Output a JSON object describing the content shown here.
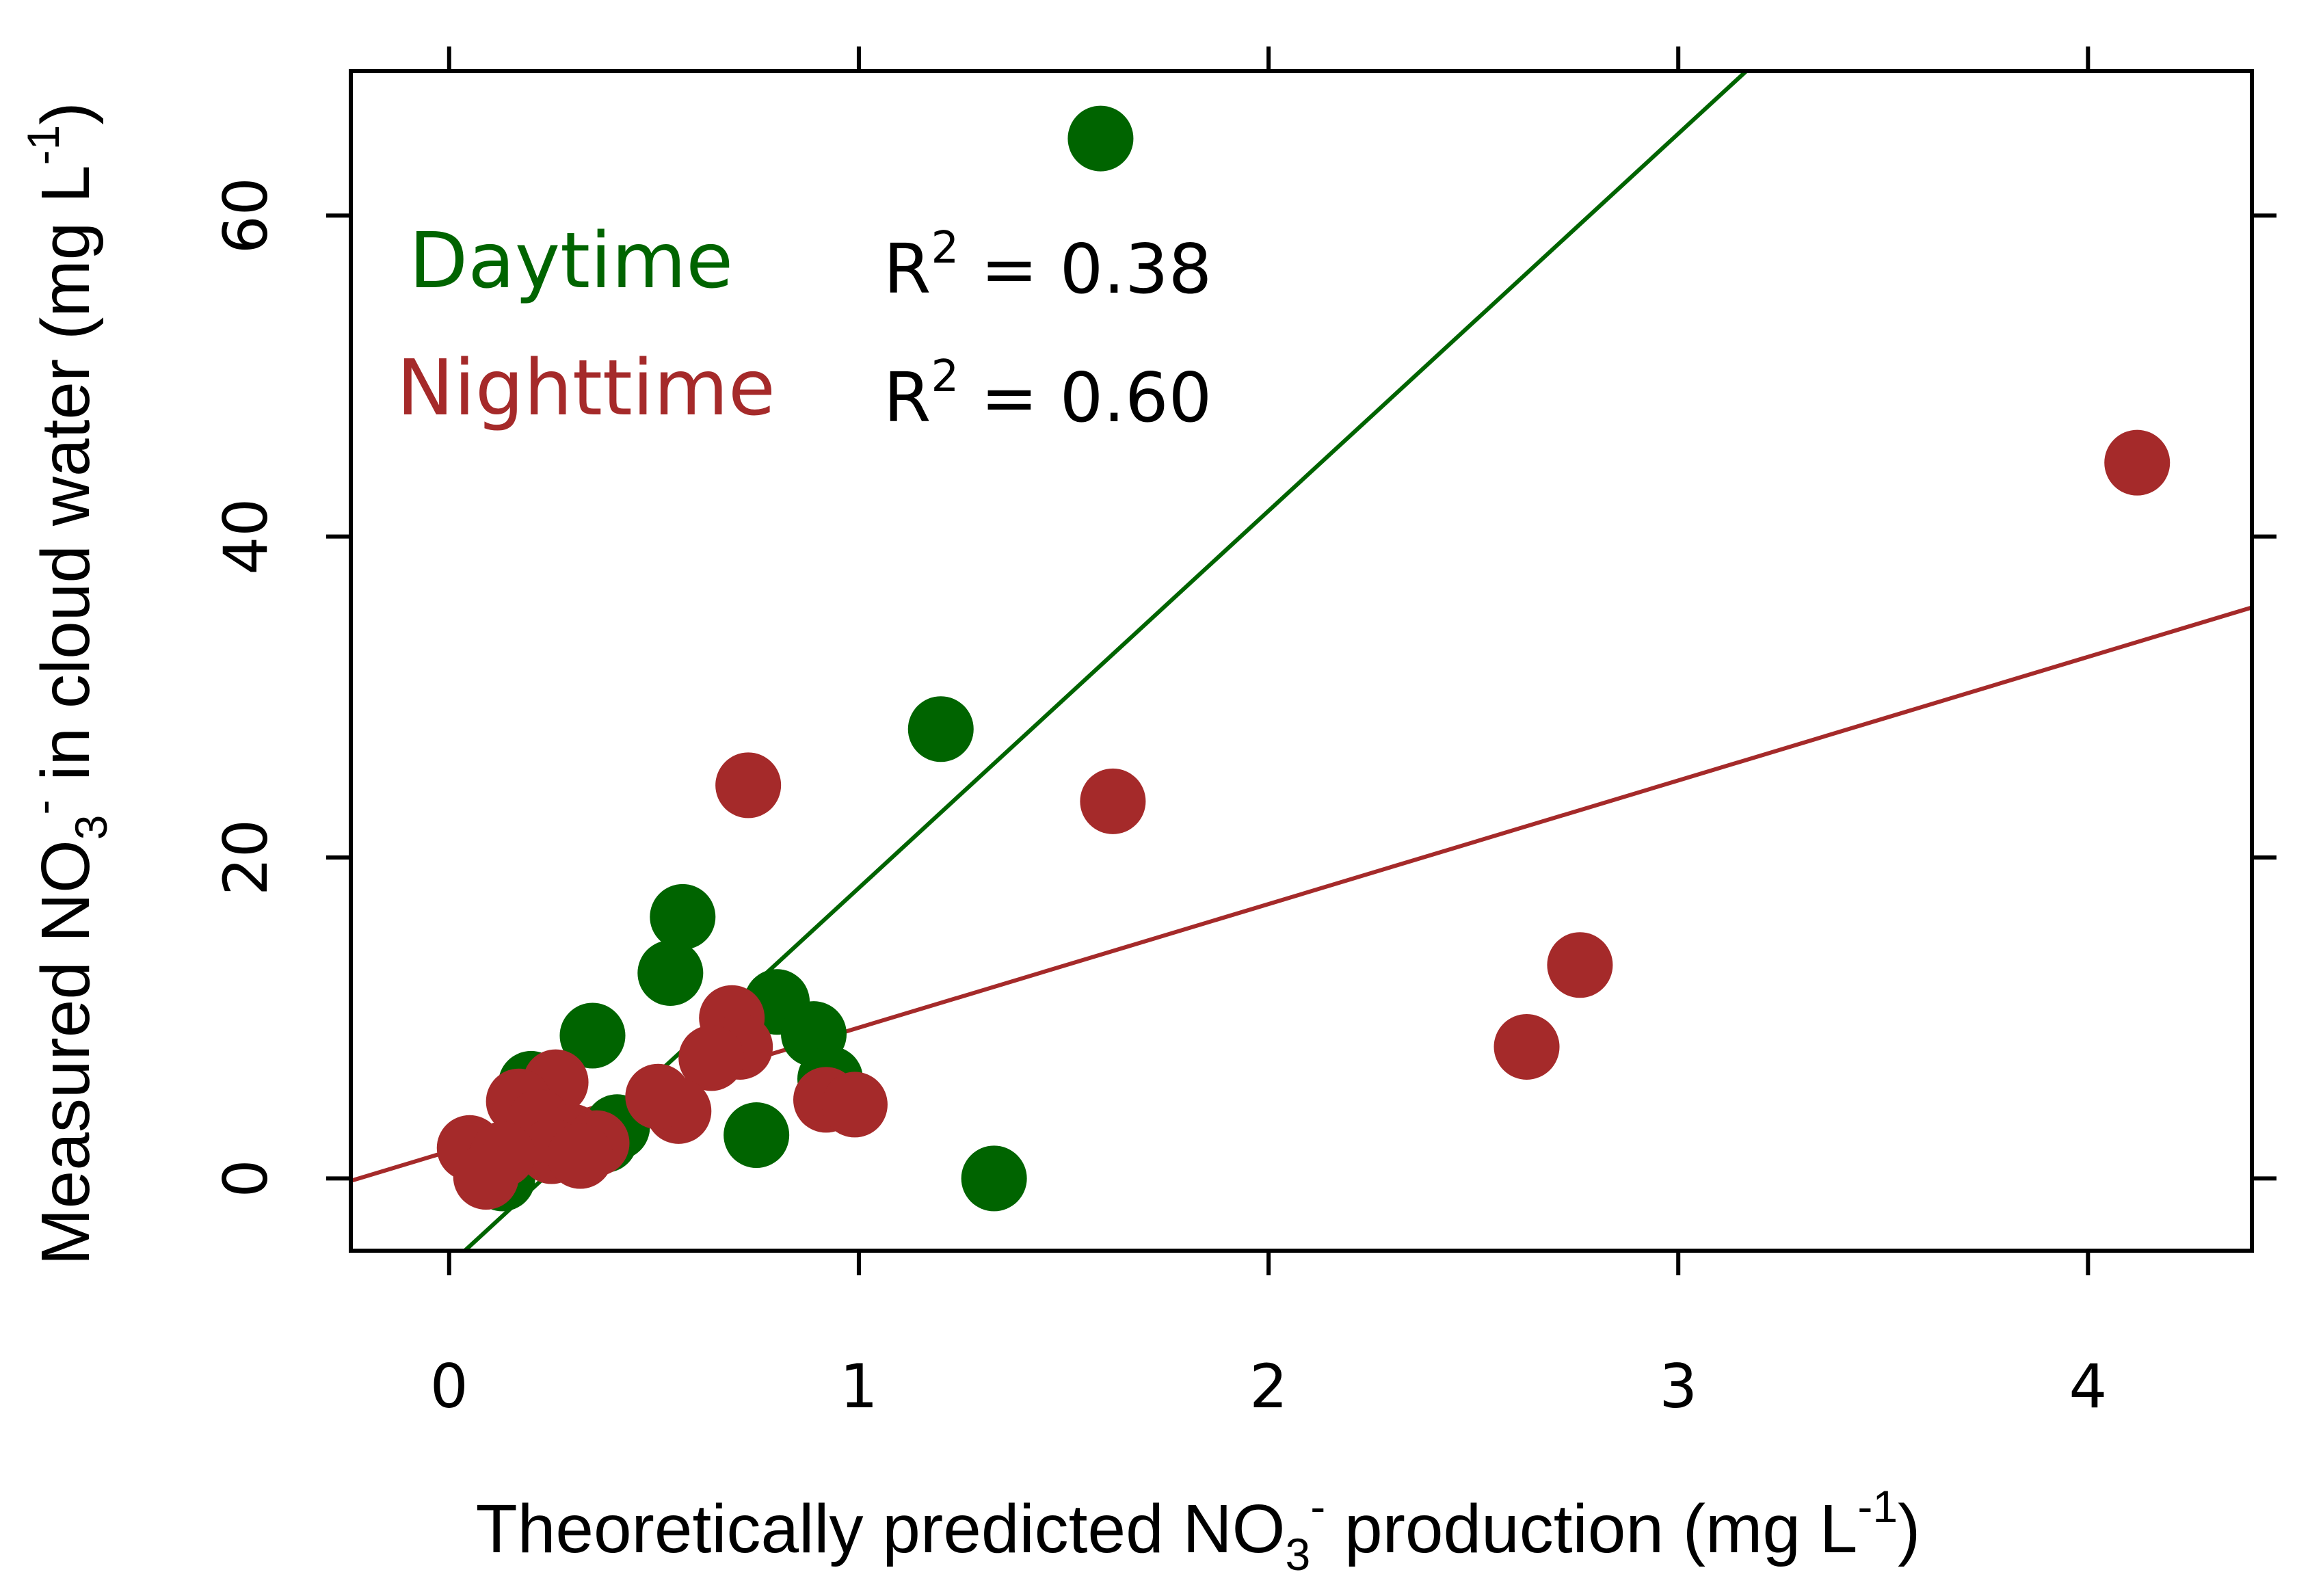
{
  "chart_data": {
    "type": "scatter",
    "xlabel": {
      "main": "Theoretically predicted NO",
      "sub": "3",
      "sup": "-",
      "rest": " production (mg L",
      "unit_sup": "-1",
      "close": ")"
    },
    "ylabel": {
      "main": "Measured NO",
      "sub": "3",
      "sup": "-",
      "rest": " in cloud water (mg L",
      "unit_sup": "-1",
      "close": ")"
    },
    "xlim": [
      -0.24,
      4.4
    ],
    "ylim": [
      -4.5,
      69
    ],
    "x_ticks": [
      0,
      1,
      2,
      3,
      4
    ],
    "x_tick_labels": [
      "0",
      "1",
      "2",
      "3",
      "4"
    ],
    "y_ticks": [
      0,
      20,
      40,
      60
    ],
    "y_tick_labels": [
      "0",
      "20",
      "40",
      "60"
    ],
    "grid": false,
    "legend_position": "top-left",
    "series": [
      {
        "name": "Daytime",
        "color": "#006400",
        "r2_label": "R",
        "r2_sup": "2",
        "r2_value": " = 0.38",
        "fit": {
          "slope": 23.5,
          "intercept": -5.4
        },
        "points": [
          {
            "x": 1.59,
            "y": 64.8
          },
          {
            "x": 1.2,
            "y": 28.0
          },
          {
            "x": 0.57,
            "y": 16.3
          },
          {
            "x": 0.54,
            "y": 12.8
          },
          {
            "x": 0.8,
            "y": 11.0
          },
          {
            "x": 0.89,
            "y": 9.0
          },
          {
            "x": 0.35,
            "y": 8.9
          },
          {
            "x": 0.93,
            "y": 6.2
          },
          {
            "x": 0.2,
            "y": 5.9
          },
          {
            "x": 0.41,
            "y": 3.2
          },
          {
            "x": 0.75,
            "y": 2.7
          },
          {
            "x": 1.33,
            "y": 0.0
          },
          {
            "x": 0.13,
            "y": 0.0
          },
          {
            "x": 0.38,
            "y": 2.4
          }
        ]
      },
      {
        "name": "Nighttime",
        "color": "#A52A2A",
        "r2_label": "R",
        "r2_sup": "2",
        "r2_value": " = 0.60",
        "fit": {
          "slope": 7.7,
          "intercept": 1.7
        },
        "points": [
          {
            "x": 4.12,
            "y": 44.6
          },
          {
            "x": 0.73,
            "y": 24.5
          },
          {
            "x": 1.62,
            "y": 23.5
          },
          {
            "x": 2.76,
            "y": 13.3
          },
          {
            "x": 2.63,
            "y": 8.2
          },
          {
            "x": 0.69,
            "y": 10.0
          },
          {
            "x": 0.71,
            "y": 8.2
          },
          {
            "x": 0.64,
            "y": 7.5
          },
          {
            "x": 0.92,
            "y": 4.9
          },
          {
            "x": 0.99,
            "y": 4.6
          },
          {
            "x": 0.56,
            "y": 4.2
          },
          {
            "x": 0.51,
            "y": 5.1
          },
          {
            "x": 0.26,
            "y": 6.0
          },
          {
            "x": 0.17,
            "y": 4.8
          },
          {
            "x": 0.22,
            "y": 3.5
          },
          {
            "x": 0.3,
            "y": 2.6
          },
          {
            "x": 0.36,
            "y": 2.2
          },
          {
            "x": 0.25,
            "y": 1.7
          },
          {
            "x": 0.32,
            "y": 1.4
          },
          {
            "x": 0.05,
            "y": 1.9
          },
          {
            "x": 0.13,
            "y": 1.5
          },
          {
            "x": 0.09,
            "y": 0.1
          }
        ]
      }
    ]
  }
}
